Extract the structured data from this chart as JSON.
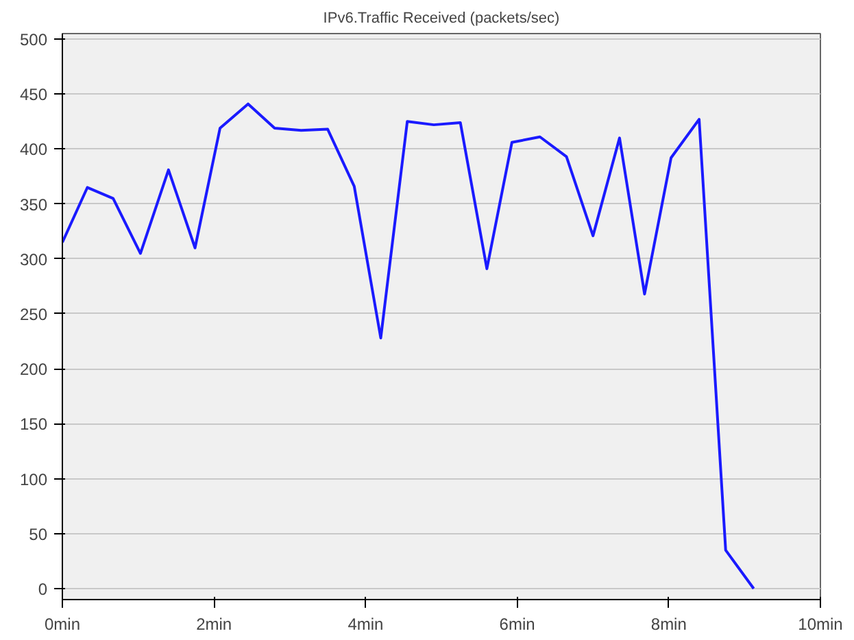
{
  "chart_data": {
    "type": "line",
    "title": "IPv6.Traffic Received (packets/sec)",
    "x": [
      0,
      0.33,
      0.67,
      1.03,
      1.4,
      1.75,
      2.08,
      2.45,
      2.8,
      3.15,
      3.5,
      3.85,
      4.2,
      4.55,
      4.9,
      5.25,
      5.6,
      5.93,
      6.3,
      6.65,
      7.0,
      7.35,
      7.68,
      8.03,
      8.4,
      8.75,
      9.12
    ],
    "series": [
      {
        "color": "#1a1aff",
        "values": [
          315,
          365,
          355,
          305,
          381,
          310,
          419,
          441,
          419,
          417,
          418,
          366,
          228,
          425,
          422,
          424,
          291,
          406,
          411,
          393,
          321,
          410,
          268,
          392,
          427,
          35,
          0
        ]
      }
    ],
    "xlim": [
      0,
      10
    ],
    "xticks": [
      {
        "value": 0,
        "label": "0min"
      },
      {
        "value": 2,
        "label": "2min"
      },
      {
        "value": 4,
        "label": "4min"
      },
      {
        "value": 6,
        "label": "6min"
      },
      {
        "value": 8,
        "label": "8min"
      },
      {
        "value": 10,
        "label": "10min"
      }
    ],
    "ylim": [
      -10,
      505
    ],
    "yticks": [
      0,
      50,
      100,
      150,
      200,
      250,
      300,
      350,
      400,
      450,
      500
    ],
    "grid": "y",
    "line_style": "solid"
  }
}
